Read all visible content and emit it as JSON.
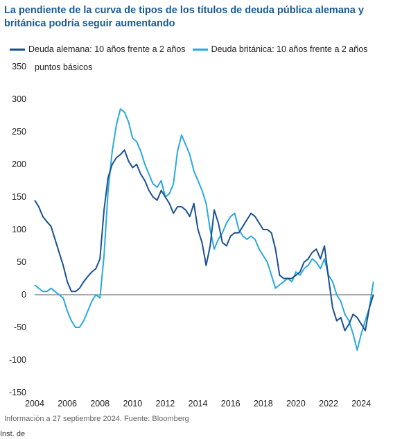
{
  "title": "La pendiente de la curva de tipos de los títulos de deuda pública alemana y británica podría seguir aumentando",
  "legend": [
    {
      "name": "Deuda alemana: 10 años frente a 2 años",
      "color": "#1b4f91"
    },
    {
      "name": "Deuda británica: 10 años frente a 2 años",
      "color": "#29a8e0"
    }
  ],
  "unit_label": "puntos básicos",
  "source": "Información a 27 septiembre 2024. Fuente: Bloomberg",
  "bottom_fragment": "Inst. de",
  "chart_data": {
    "type": "line",
    "title": "La pendiente de la curva de tipos de los títulos de deuda pública alemana y británica podría seguir aumentando",
    "ylabel": "puntos básicos",
    "ylim": [
      -150,
      350
    ],
    "xlim": [
      2004,
      2024.8
    ],
    "yticks": [
      -150,
      -100,
      -50,
      0,
      50,
      100,
      150,
      200,
      250,
      300,
      350
    ],
    "xticks": [
      2004,
      2006,
      2008,
      2010,
      2012,
      2014,
      2016,
      2018,
      2020,
      2022,
      2024
    ],
    "grid": false,
    "legend_position": "top",
    "series": [
      {
        "name": "Deuda alemana: 10 años frente a 2 años",
        "color": "#1b4f91",
        "x": [
          2004.0,
          2004.25,
          2004.5,
          2004.75,
          2005.0,
          2005.25,
          2005.5,
          2005.75,
          2006.0,
          2006.25,
          2006.5,
          2006.75,
          2007.0,
          2007.25,
          2007.5,
          2007.75,
          2008.0,
          2008.25,
          2008.5,
          2008.75,
          2009.0,
          2009.25,
          2009.5,
          2009.75,
          2010.0,
          2010.25,
          2010.5,
          2010.75,
          2011.0,
          2011.25,
          2011.5,
          2011.75,
          2012.0,
          2012.25,
          2012.5,
          2012.75,
          2013.0,
          2013.25,
          2013.5,
          2013.75,
          2014.0,
          2014.25,
          2014.5,
          2014.75,
          2015.0,
          2015.25,
          2015.5,
          2015.75,
          2016.0,
          2016.25,
          2016.5,
          2016.75,
          2017.0,
          2017.25,
          2017.5,
          2017.75,
          2018.0,
          2018.25,
          2018.5,
          2018.75,
          2019.0,
          2019.25,
          2019.5,
          2019.75,
          2020.0,
          2020.25,
          2020.5,
          2020.75,
          2021.0,
          2021.25,
          2021.5,
          2021.75,
          2022.0,
          2022.25,
          2022.5,
          2022.75,
          2023.0,
          2023.25,
          2023.5,
          2023.75,
          2024.0,
          2024.25,
          2024.5,
          2024.75
        ],
        "values": [
          145,
          135,
          120,
          112,
          105,
          85,
          65,
          45,
          20,
          5,
          5,
          10,
          20,
          28,
          35,
          40,
          55,
          130,
          180,
          200,
          210,
          215,
          222,
          205,
          195,
          200,
          185,
          175,
          160,
          150,
          145,
          160,
          150,
          140,
          125,
          135,
          135,
          130,
          120,
          140,
          100,
          80,
          45,
          75,
          130,
          110,
          80,
          75,
          90,
          95,
          95,
          105,
          115,
          125,
          120,
          110,
          100,
          100,
          95,
          70,
          30,
          25,
          25,
          25,
          30,
          35,
          50,
          55,
          65,
          70,
          55,
          75,
          25,
          -20,
          -40,
          -35,
          -55,
          -45,
          -30,
          -35,
          -45,
          -55,
          -20,
          0
        ]
      },
      {
        "name": "Deuda británica: 10 años frente a 2 años",
        "color": "#29a8e0",
        "x": [
          2004.0,
          2004.25,
          2004.5,
          2004.75,
          2005.0,
          2005.25,
          2005.5,
          2005.75,
          2006.0,
          2006.25,
          2006.5,
          2006.75,
          2007.0,
          2007.25,
          2007.5,
          2007.75,
          2008.0,
          2008.25,
          2008.5,
          2008.75,
          2009.0,
          2009.25,
          2009.5,
          2009.75,
          2010.0,
          2010.25,
          2010.5,
          2010.75,
          2011.0,
          2011.25,
          2011.5,
          2011.75,
          2012.0,
          2012.25,
          2012.5,
          2012.75,
          2013.0,
          2013.25,
          2013.5,
          2013.75,
          2014.0,
          2014.25,
          2014.5,
          2014.75,
          2015.0,
          2015.25,
          2015.5,
          2015.75,
          2016.0,
          2016.25,
          2016.5,
          2016.75,
          2017.0,
          2017.25,
          2017.5,
          2017.75,
          2018.0,
          2018.25,
          2018.5,
          2018.75,
          2019.0,
          2019.25,
          2019.5,
          2019.75,
          2020.0,
          2020.25,
          2020.5,
          2020.75,
          2021.0,
          2021.25,
          2021.5,
          2021.75,
          2022.0,
          2022.25,
          2022.5,
          2022.75,
          2023.0,
          2023.25,
          2023.5,
          2023.75,
          2024.0,
          2024.25,
          2024.5,
          2024.75
        ],
        "values": [
          15,
          10,
          5,
          5,
          10,
          5,
          0,
          -5,
          -25,
          -40,
          -50,
          -50,
          -40,
          -25,
          -10,
          0,
          -5,
          60,
          160,
          220,
          260,
          285,
          280,
          265,
          240,
          235,
          220,
          200,
          185,
          170,
          165,
          175,
          150,
          155,
          170,
          220,
          245,
          230,
          215,
          190,
          175,
          160,
          140,
          100,
          70,
          85,
          95,
          110,
          120,
          125,
          100,
          90,
          85,
          90,
          85,
          70,
          60,
          50,
          30,
          10,
          15,
          20,
          25,
          20,
          35,
          30,
          40,
          45,
          55,
          50,
          40,
          55,
          30,
          20,
          0,
          -10,
          -30,
          -40,
          -60,
          -85,
          -60,
          -40,
          -20,
          20
        ]
      }
    ]
  }
}
